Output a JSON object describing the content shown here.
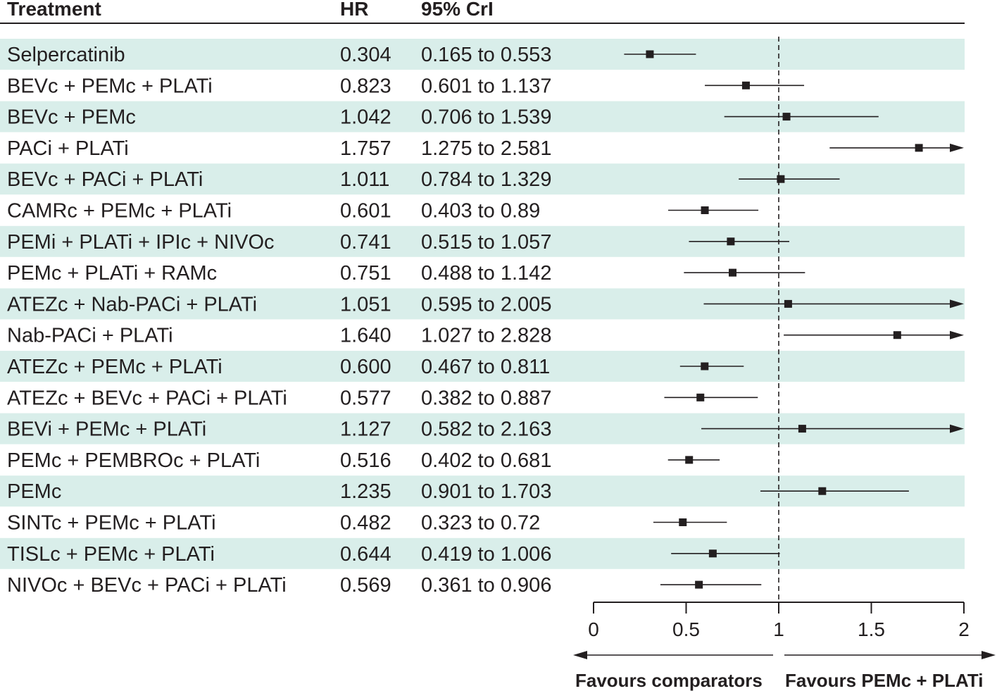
{
  "headers": {
    "treatment": "Treatment",
    "hr": "HR",
    "cri": "95% CrI"
  },
  "colors": {
    "band": "#d9eeea",
    "ink": "#231f20"
  },
  "footer": {
    "left": "Favours comparators",
    "right": "Favours PEMc + PLATi"
  },
  "chart_data": {
    "type": "forest",
    "reference_line": 1,
    "xlim": [
      0,
      2
    ],
    "xticks": [
      0,
      0.5,
      1,
      1.5,
      2
    ],
    "xtick_labels": [
      "0",
      "0.5",
      "1",
      "1.5",
      "2"
    ],
    "rows": [
      {
        "treatment": "Selpercatinib",
        "hr": 0.304,
        "lo": 0.165,
        "hi": 0.553,
        "hr_text": "0.304",
        "cri_text": "0.165 to 0.553"
      },
      {
        "treatment": "BEVc + PEMc + PLATi",
        "hr": 0.823,
        "lo": 0.601,
        "hi": 1.137,
        "hr_text": "0.823",
        "cri_text": "0.601 to 1.137"
      },
      {
        "treatment": "BEVc + PEMc",
        "hr": 1.042,
        "lo": 0.706,
        "hi": 1.539,
        "hr_text": "1.042",
        "cri_text": "0.706 to 1.539"
      },
      {
        "treatment": "PACi + PLATi",
        "hr": 1.757,
        "lo": 1.275,
        "hi": 2.581,
        "hr_text": "1.757",
        "cri_text": "1.275 to 2.581"
      },
      {
        "treatment": "BEVc + PACi + PLATi",
        "hr": 1.011,
        "lo": 0.784,
        "hi": 1.329,
        "hr_text": "1.011",
        "cri_text": "0.784 to 1.329"
      },
      {
        "treatment": "CAMRc + PEMc + PLATi",
        "hr": 0.601,
        "lo": 0.403,
        "hi": 0.89,
        "hr_text": "0.601",
        "cri_text": "0.403 to 0.89"
      },
      {
        "treatment": "PEMi + PLATi + IPIc + NIVOc",
        "hr": 0.741,
        "lo": 0.515,
        "hi": 1.057,
        "hr_text": "0.741",
        "cri_text": "0.515 to 1.057"
      },
      {
        "treatment": "PEMc + PLATi + RAMc",
        "hr": 0.751,
        "lo": 0.488,
        "hi": 1.142,
        "hr_text": "0.751",
        "cri_text": "0.488 to 1.142"
      },
      {
        "treatment": "ATEZc + Nab-PACi + PLATi",
        "hr": 1.051,
        "lo": 0.595,
        "hi": 2.005,
        "hr_text": "1.051",
        "cri_text": "0.595 to 2.005"
      },
      {
        "treatment": "Nab-PACi + PLATi",
        "hr": 1.64,
        "lo": 1.027,
        "hi": 2.828,
        "hr_text": "1.640",
        "cri_text": "1.027 to 2.828"
      },
      {
        "treatment": "ATEZc + PEMc + PLATi",
        "hr": 0.6,
        "lo": 0.467,
        "hi": 0.811,
        "hr_text": "0.600",
        "cri_text": "0.467 to 0.811"
      },
      {
        "treatment": "ATEZc + BEVc + PACi + PLATi",
        "hr": 0.577,
        "lo": 0.382,
        "hi": 0.887,
        "hr_text": "0.577",
        "cri_text": "0.382 to 0.887"
      },
      {
        "treatment": "BEVi + PEMc + PLATi",
        "hr": 1.127,
        "lo": 0.582,
        "hi": 2.163,
        "hr_text": "1.127",
        "cri_text": "0.582 to 2.163"
      },
      {
        "treatment": "PEMc + PEMBROc + PLATi",
        "hr": 0.516,
        "lo": 0.402,
        "hi": 0.681,
        "hr_text": "0.516",
        "cri_text": "0.402 to 0.681"
      },
      {
        "treatment": "PEMc",
        "hr": 1.235,
        "lo": 0.901,
        "hi": 1.703,
        "hr_text": "1.235",
        "cri_text": "0.901 to 1.703"
      },
      {
        "treatment": "SINTc + PEMc + PLATi",
        "hr": 0.482,
        "lo": 0.323,
        "hi": 0.72,
        "hr_text": "0.482",
        "cri_text": "0.323 to 0.72"
      },
      {
        "treatment": "TISLc + PEMc + PLATi",
        "hr": 0.644,
        "lo": 0.419,
        "hi": 1.006,
        "hr_text": "0.644",
        "cri_text": "0.419 to 1.006"
      },
      {
        "treatment": "NIVOc + BEVc + PACi + PLATi",
        "hr": 0.569,
        "lo": 0.361,
        "hi": 0.906,
        "hr_text": "0.569",
        "cri_text": "0.361 to 0.906"
      }
    ]
  }
}
